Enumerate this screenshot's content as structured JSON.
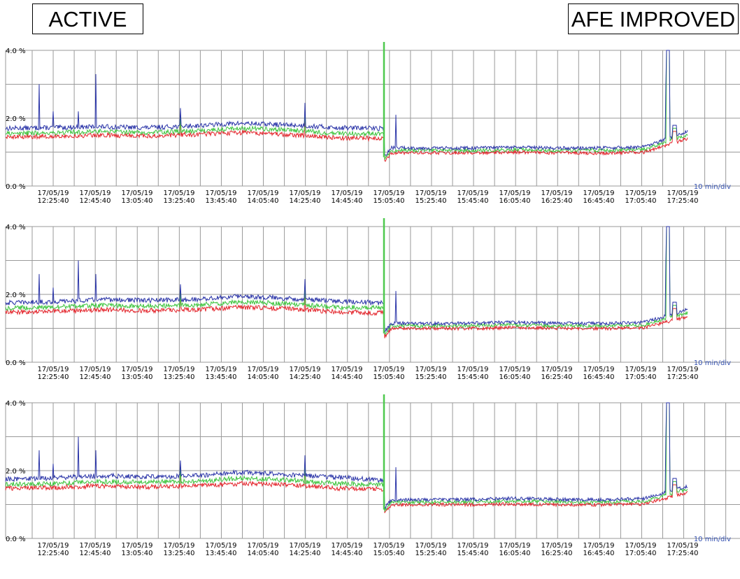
{
  "header": {
    "left_label": "ACTIVE",
    "right_label": "AFE IMPROVED"
  },
  "colors": {
    "grid": "#9a9a9a",
    "blue": "#2b35a8",
    "green": "#3dc43d",
    "red": "#e3242b",
    "div_label": "#3350b0",
    "marker": "#4ec94e"
  },
  "chart_data": [
    {
      "type": "line",
      "ylim": [
        0,
        4
      ],
      "yticks": [
        "4.0 %",
        "2.0 %",
        "0.0 %"
      ],
      "x_ticks": [
        {
          "date": "17/05/19",
          "time": "12:25:40"
        },
        {
          "date": "17/05/19",
          "time": "12:45:40"
        },
        {
          "date": "17/05/19",
          "time": "13:05:40"
        },
        {
          "date": "17/05/19",
          "time": "13:25:40"
        },
        {
          "date": "17/05/19",
          "time": "13:45:40"
        },
        {
          "date": "17/05/19",
          "time": "14:05:40"
        },
        {
          "date": "17/05/19",
          "time": "14:25:40"
        },
        {
          "date": "17/05/19",
          "time": "14:45:40"
        },
        {
          "date": "17/05/19",
          "time": "15:05:40"
        },
        {
          "date": "17/05/19",
          "time": "15:25:40"
        },
        {
          "date": "17/05/19",
          "time": "15:45:40"
        },
        {
          "date": "17/05/19",
          "time": "16:05:40"
        },
        {
          "date": "17/05/19",
          "time": "16:25:40"
        },
        {
          "date": "17/05/19",
          "time": "16:45:40"
        },
        {
          "date": "17/05/19",
          "time": "17:05:40"
        },
        {
          "date": "17/05/19",
          "time": "17:25:40"
        }
      ],
      "division_label": "10 min/div",
      "series": [
        {
          "color": "blue",
          "levels_before": [
            1.7,
            1.72,
            1.75,
            1.72,
            1.78,
            1.85,
            1.8,
            1.72,
            1.7
          ],
          "levels_after": [
            1.13,
            1.12,
            1.12,
            1.14,
            1.12,
            1.12,
            1.15,
            1.6
          ]
        },
        {
          "color": "green",
          "levels_before": [
            1.55,
            1.57,
            1.62,
            1.58,
            1.62,
            1.7,
            1.65,
            1.55,
            1.55
          ],
          "levels_after": [
            1.05,
            1.05,
            1.05,
            1.07,
            1.05,
            1.05,
            1.08,
            1.5
          ]
        },
        {
          "color": "red",
          "levels_before": [
            1.45,
            1.47,
            1.5,
            1.48,
            1.52,
            1.58,
            1.52,
            1.42,
            1.4
          ],
          "levels_after": [
            0.98,
            0.98,
            0.98,
            1.0,
            0.98,
            0.97,
            1.0,
            1.4
          ]
        }
      ]
    },
    {
      "type": "line",
      "ylim": [
        0,
        4
      ],
      "yticks": [
        "4.0 %",
        "2.0 %",
        "0.0 %"
      ],
      "x_ticks": [
        {
          "date": "17/05/19",
          "time": "12:25:40"
        },
        {
          "date": "17/05/19",
          "time": "12:45:40"
        },
        {
          "date": "17/05/19",
          "time": "13:05:40"
        },
        {
          "date": "17/05/19",
          "time": "13:25:40"
        },
        {
          "date": "17/05/19",
          "time": "13:45:40"
        },
        {
          "date": "17/05/19",
          "time": "14:05:40"
        },
        {
          "date": "17/05/19",
          "time": "14:25:40"
        },
        {
          "date": "17/05/19",
          "time": "14:45:40"
        },
        {
          "date": "17/05/19",
          "time": "15:05:40"
        },
        {
          "date": "17/05/19",
          "time": "15:25:40"
        },
        {
          "date": "17/05/19",
          "time": "15:45:40"
        },
        {
          "date": "17/05/19",
          "time": "16:05:40"
        },
        {
          "date": "17/05/19",
          "time": "16:25:40"
        },
        {
          "date": "17/05/19",
          "time": "16:45:40"
        },
        {
          "date": "17/05/19",
          "time": "17:05:40"
        },
        {
          "date": "17/05/19",
          "time": "17:25:40"
        }
      ],
      "division_label": "10 min/div",
      "series": [
        {
          "color": "blue",
          "levels_before": [
            1.75,
            1.78,
            1.85,
            1.82,
            1.85,
            1.95,
            1.88,
            1.8,
            1.75
          ],
          "levels_after": [
            1.15,
            1.14,
            1.15,
            1.18,
            1.15,
            1.14,
            1.18,
            1.55
          ]
        },
        {
          "color": "green",
          "levels_before": [
            1.6,
            1.62,
            1.68,
            1.66,
            1.68,
            1.78,
            1.72,
            1.62,
            1.6
          ],
          "levels_after": [
            1.08,
            1.07,
            1.08,
            1.1,
            1.08,
            1.07,
            1.1,
            1.45
          ]
        },
        {
          "color": "red",
          "levels_before": [
            1.48,
            1.5,
            1.55,
            1.52,
            1.55,
            1.62,
            1.58,
            1.48,
            1.45
          ],
          "levels_after": [
            1.0,
            1.0,
            1.0,
            1.02,
            1.0,
            0.99,
            1.02,
            1.35
          ]
        }
      ]
    },
    {
      "type": "line",
      "ylim": [
        0,
        4
      ],
      "yticks": [
        "4.0 %",
        "2.0 %",
        "0.0 %"
      ],
      "x_ticks": [
        {
          "date": "17/05/19",
          "time": "12:25:40"
        },
        {
          "date": "17/05/19",
          "time": "12:45:40"
        },
        {
          "date": "17/05/19",
          "time": "13:05:40"
        },
        {
          "date": "17/05/19",
          "time": "13:25:40"
        },
        {
          "date": "17/05/19",
          "time": "13:45:40"
        },
        {
          "date": "17/05/19",
          "time": "14:05:40"
        },
        {
          "date": "17/05/19",
          "time": "14:25:40"
        },
        {
          "date": "17/05/19",
          "time": "14:45:40"
        },
        {
          "date": "17/05/19",
          "time": "15:05:40"
        },
        {
          "date": "17/05/19",
          "time": "15:25:40"
        },
        {
          "date": "17/05/19",
          "time": "15:45:40"
        },
        {
          "date": "17/05/19",
          "time": "16:05:40"
        },
        {
          "date": "17/05/19",
          "time": "16:25:40"
        },
        {
          "date": "17/05/19",
          "time": "16:45:40"
        },
        {
          "date": "17/05/19",
          "time": "17:05:40"
        },
        {
          "date": "17/05/19",
          "time": "17:25:40"
        }
      ],
      "division_label": "10 min/div",
      "series": [
        {
          "color": "blue",
          "levels_before": [
            1.75,
            1.78,
            1.85,
            1.82,
            1.85,
            1.95,
            1.88,
            1.8,
            1.72
          ],
          "levels_after": [
            1.15,
            1.14,
            1.15,
            1.18,
            1.15,
            1.14,
            1.18,
            1.55
          ]
        },
        {
          "color": "green",
          "levels_before": [
            1.6,
            1.62,
            1.68,
            1.66,
            1.68,
            1.78,
            1.72,
            1.62,
            1.58
          ],
          "levels_after": [
            1.08,
            1.07,
            1.08,
            1.1,
            1.08,
            1.07,
            1.1,
            1.45
          ]
        },
        {
          "color": "red",
          "levels_before": [
            1.48,
            1.5,
            1.55,
            1.52,
            1.55,
            1.62,
            1.58,
            1.48,
            1.45
          ],
          "levels_after": [
            1.0,
            1.0,
            1.0,
            1.02,
            1.0,
            0.99,
            1.02,
            1.35
          ]
        }
      ]
    }
  ]
}
